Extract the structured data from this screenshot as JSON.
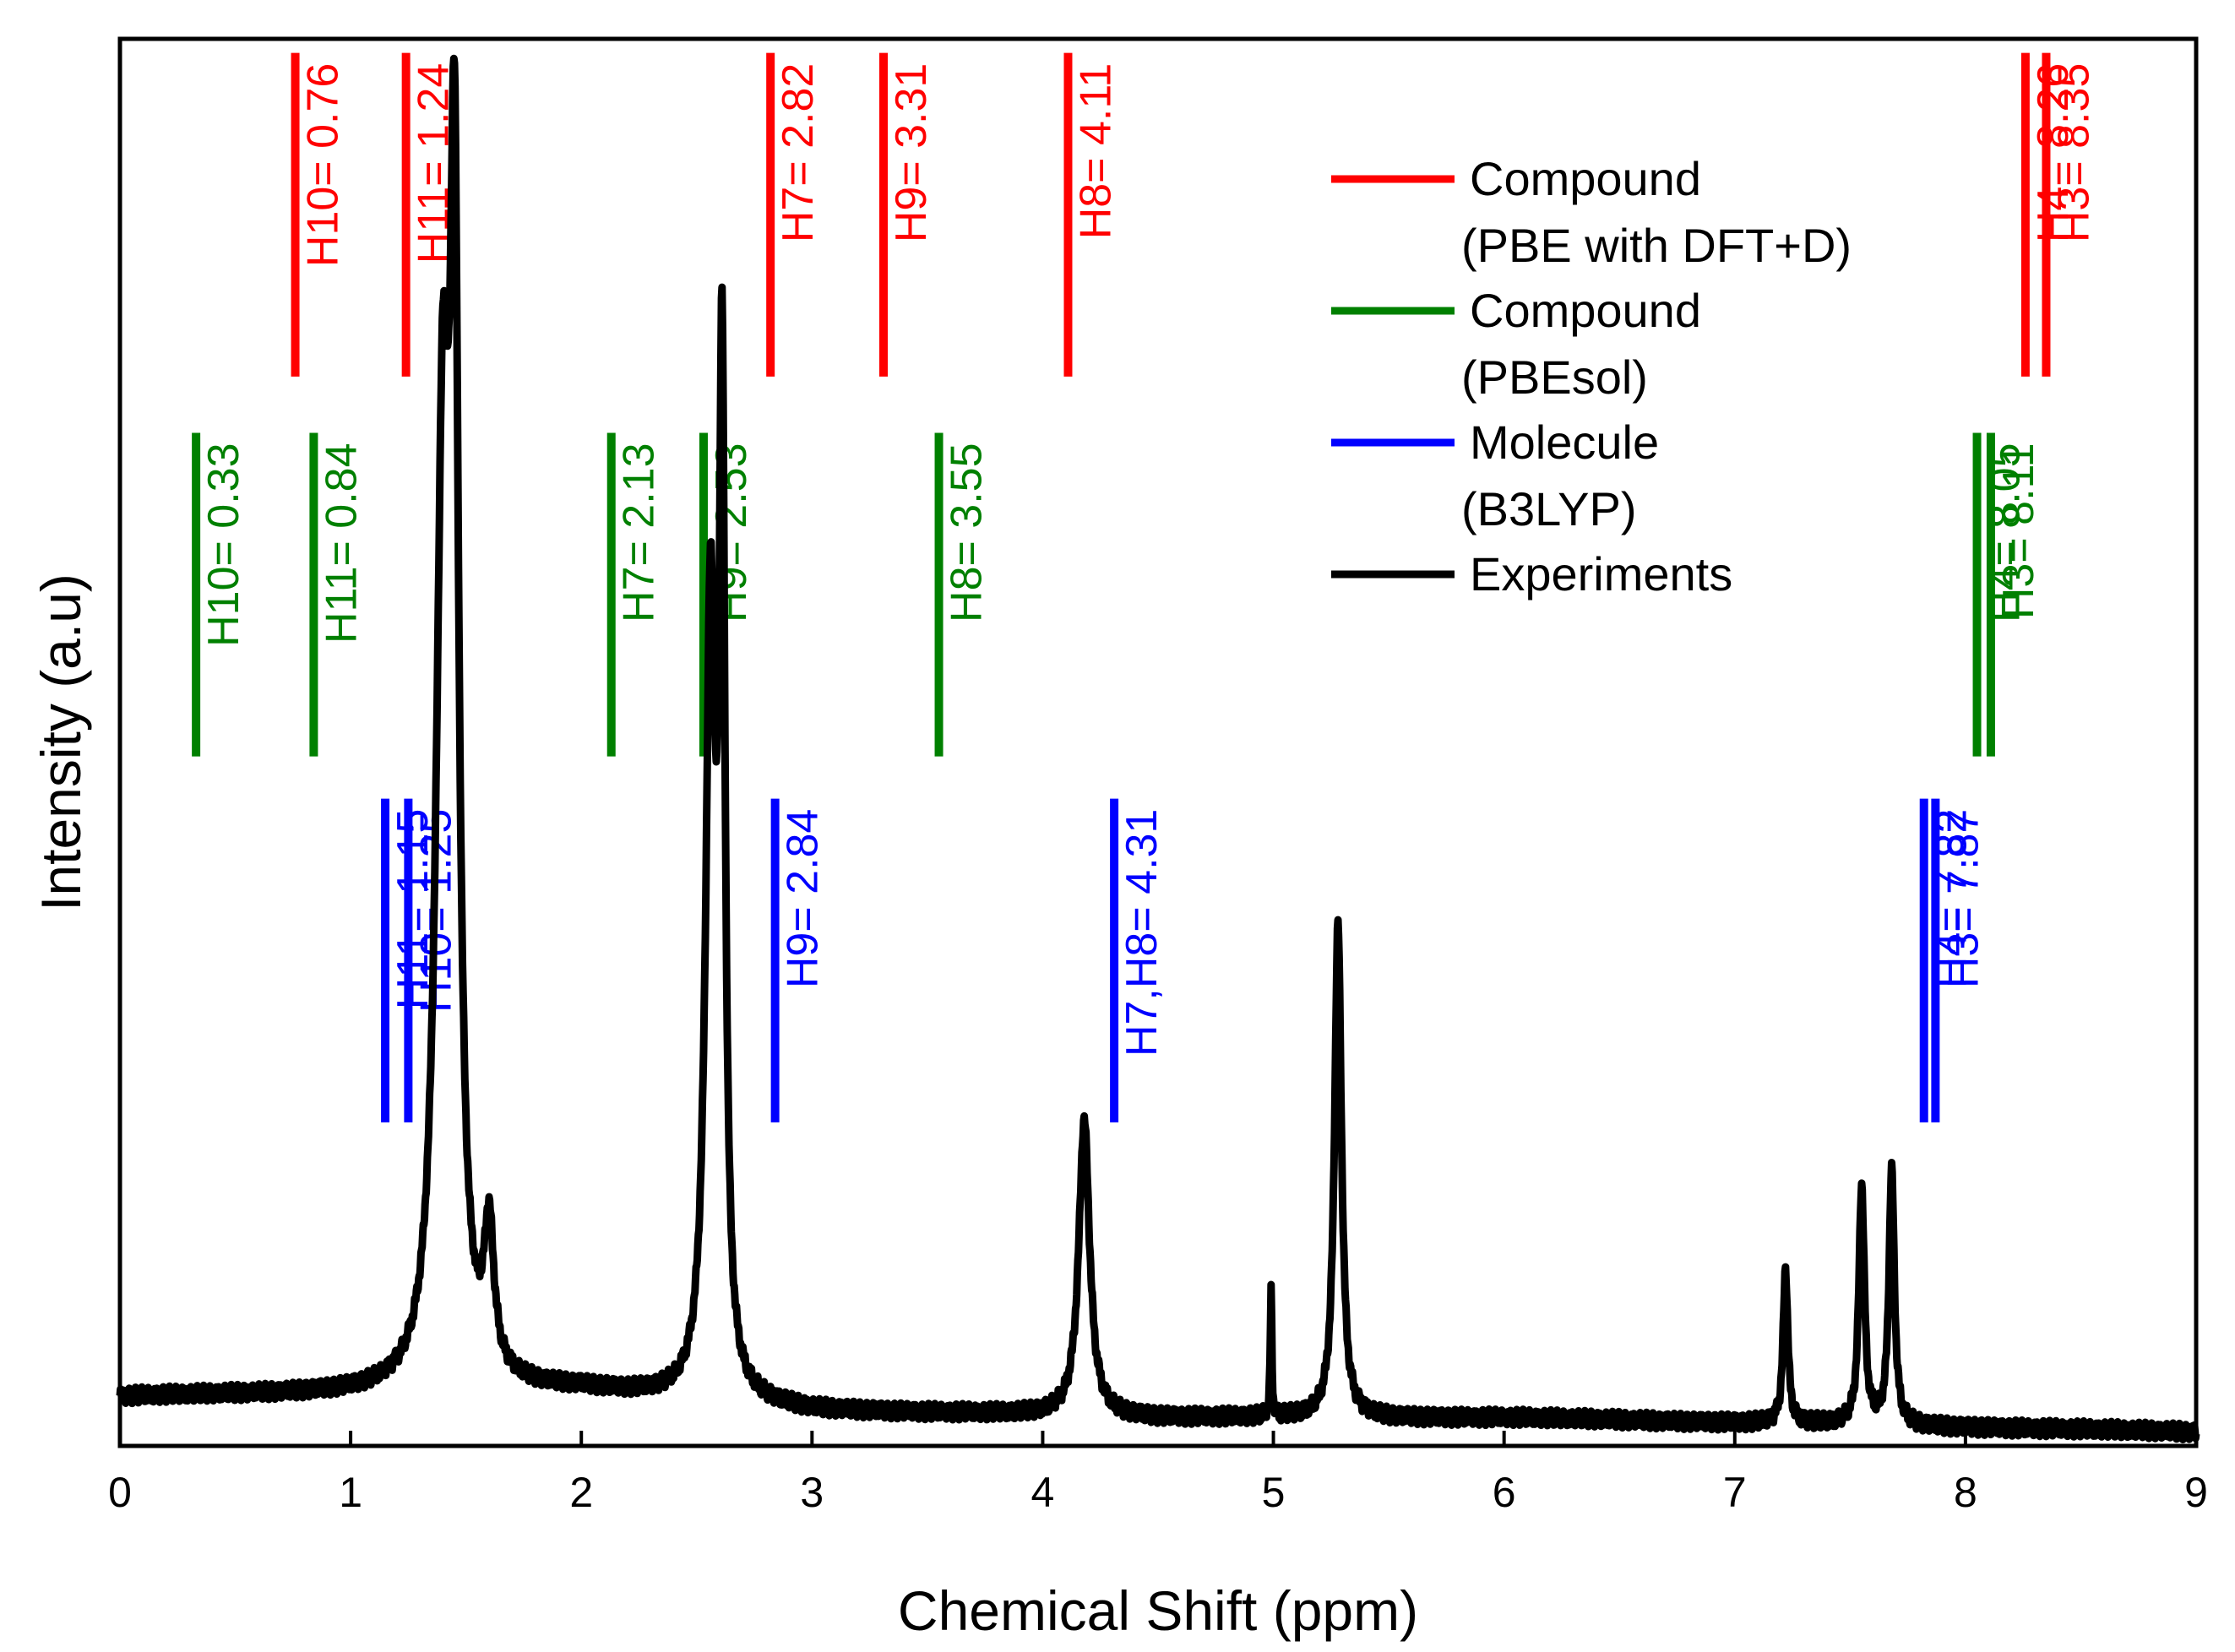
{
  "chart_data": {
    "type": "line",
    "xlabel": "Chemical Shift (ppm)",
    "ylabel": "Intensity (a.u)",
    "xlim": [
      0,
      9
    ],
    "xticks": [
      "0",
      "1",
      "2",
      "3",
      "4",
      "5",
      "6",
      "7",
      "8",
      "9"
    ],
    "legend": {
      "placement": "top-center",
      "entries": [
        {
          "label": "Compound",
          "sublabel": "(PBE with DFT+D)",
          "color": "#ff0000"
        },
        {
          "label": "Compound",
          "sublabel": "(PBEsol)",
          "color": "#008000"
        },
        {
          "label": "Molecule",
          "sublabel": "(B3LYP)",
          "color": "#0000ff"
        },
        {
          "label": "Experiments",
          "sublabel": "",
          "color": "#000000"
        }
      ]
    },
    "calculated_shifts": [
      {
        "method": "PBE with DFT+D",
        "color": "#ff0000",
        "y_range": [
          0.76,
          0.99
        ],
        "sticks": [
          {
            "x": 0.76,
            "label": "H10= 0.76"
          },
          {
            "x": 1.24,
            "label": "H11= 1.24"
          },
          {
            "x": 2.82,
            "label": "H7= 2.82"
          },
          {
            "x": 3.31,
            "label": "H9= 3.31"
          },
          {
            "x": 4.11,
            "label": "H8= 4.11"
          },
          {
            "x": 8.26,
            "label": "H4= 8.26"
          },
          {
            "x": 8.35,
            "label": "H3= 8.35"
          }
        ]
      },
      {
        "method": "PBEsol",
        "color": "#008000",
        "y_range": [
          0.49,
          0.72
        ],
        "sticks": [
          {
            "x": 0.33,
            "label": "H10= 0.33"
          },
          {
            "x": 0.84,
            "label": "H11= 0.84"
          },
          {
            "x": 2.13,
            "label": "H7= 2.13"
          },
          {
            "x": 2.53,
            "label": "H9= 2.53"
          },
          {
            "x": 3.55,
            "label": "H8= 3.55"
          },
          {
            "x": 8.05,
            "label": "H4= 8.05"
          },
          {
            "x": 8.11,
            "label": "H3= 8.11"
          }
        ]
      },
      {
        "method": "B3LYP",
        "color": "#0000ff",
        "y_range": [
          0.23,
          0.46
        ],
        "sticks": [
          {
            "x": 1.15,
            "label": "H11= 1.15"
          },
          {
            "x": 1.25,
            "label": "H10= 1.25"
          },
          {
            "x": 2.84,
            "label": "H9= 2.84"
          },
          {
            "x": 4.31,
            "label": "H7,H8= 4.31"
          },
          {
            "x": 7.82,
            "label": "H4= 7.82"
          },
          {
            "x": 7.87,
            "label": "H3= 7.87"
          }
        ]
      }
    ],
    "experiment": {
      "name": "Experiments",
      "color": "#000000",
      "ylim": [
        0,
        1
      ],
      "peaks": [
        {
          "x": 1.4,
          "height": 0.65,
          "width": 0.035
        },
        {
          "x": 1.45,
          "height": 0.73,
          "width": 0.022
        },
        {
          "x": 1.6,
          "height": 0.1,
          "width": 0.025
        },
        {
          "x": 2.56,
          "height": 0.55,
          "width": 0.025
        },
        {
          "x": 2.61,
          "height": 0.68,
          "width": 0.015
        },
        {
          "x": 4.18,
          "height": 0.21,
          "width": 0.028
        },
        {
          "x": 4.99,
          "height": 0.09,
          "width": 0.004
        },
        {
          "x": 5.28,
          "height": 0.35,
          "width": 0.018
        },
        {
          "x": 7.22,
          "height": 0.11,
          "width": 0.012
        },
        {
          "x": 7.55,
          "height": 0.17,
          "width": 0.014
        },
        {
          "x": 7.68,
          "height": 0.18,
          "width": 0.014
        }
      ],
      "baseline": [
        [
          0,
          0.035
        ],
        [
          2,
          0.04
        ],
        [
          3,
          0.025
        ],
        [
          4.5,
          0.02
        ],
        [
          6,
          0.02
        ],
        [
          9,
          0.01
        ]
      ]
    }
  }
}
